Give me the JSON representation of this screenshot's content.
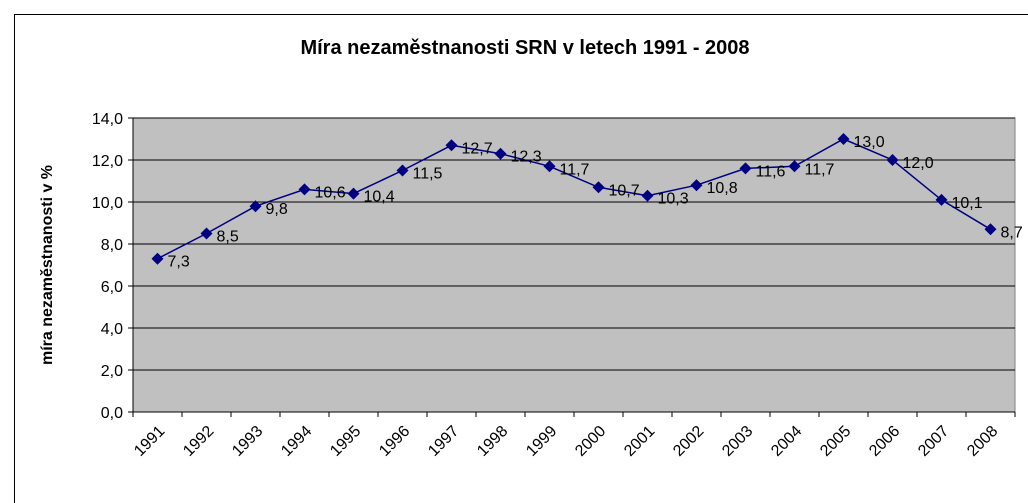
{
  "chart_data": {
    "type": "line",
    "title": "Míra nezaměstnanosti SRN v letech 1991 - 2008",
    "y_label": "míra nezaměstnanosti v %",
    "categories": [
      "1991",
      "1992",
      "1993",
      "1994",
      "1995",
      "1996",
      "1997",
      "1998",
      "1999",
      "2000",
      "2001",
      "2002",
      "2003",
      "2004",
      "2005",
      "2006",
      "2007",
      "2008"
    ],
    "series": [
      {
        "name": "míra nezaměstnanosti",
        "color": "#000080",
        "values": [
          7.3,
          8.5,
          9.8,
          10.6,
          10.4,
          11.5,
          12.7,
          12.3,
          11.7,
          10.7,
          10.3,
          10.8,
          11.6,
          11.7,
          13.0,
          12.0,
          10.1,
          8.7
        ],
        "value_labels": [
          "7,3",
          "8,5",
          "9,8",
          "10,6",
          "10,4",
          "11,5",
          "12,7",
          "12,3",
          "11,7",
          "10,7",
          "10,3",
          "10,8",
          "11,6",
          "11,7",
          "13,0",
          "12,0",
          "10,1",
          "8,7"
        ]
      }
    ],
    "ylim": [
      0,
      14
    ],
    "yticks": [
      {
        "value": 0,
        "label": "0,0"
      },
      {
        "value": 2,
        "label": "2,0"
      },
      {
        "value": 4,
        "label": "4,0"
      },
      {
        "value": 6,
        "label": "6,0"
      },
      {
        "value": 8,
        "label": "8,0"
      },
      {
        "value": 10,
        "label": "10,0"
      },
      {
        "value": 12,
        "label": "12,0"
      },
      {
        "value": 14,
        "label": "14,0"
      }
    ],
    "grid": true
  }
}
